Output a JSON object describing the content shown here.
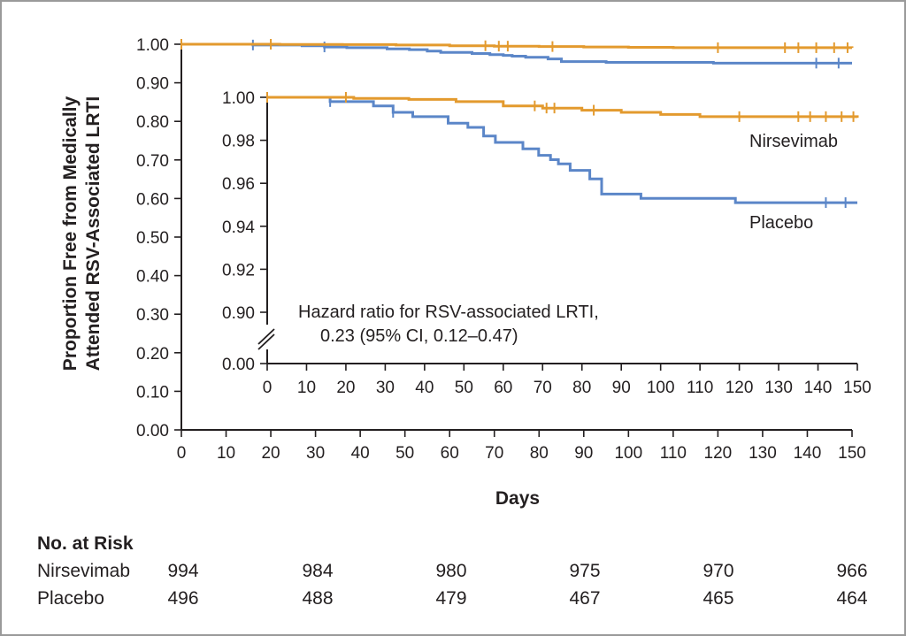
{
  "colors": {
    "nirsevimab": "#e39a2e",
    "placebo": "#5b86c8",
    "axis": "#231f20",
    "frame": "#9a9a9a"
  },
  "chart_data": {
    "type": "line",
    "subtype": "kaplan-meier",
    "title": "",
    "xlabel": "Days",
    "ylabel": "Proportion Free from Medically Attended RSV-Associated LRTI",
    "ylabel_lines": [
      "Proportion Free from Medically",
      "Attended RSV-Associated LRTI"
    ],
    "grid": false,
    "main_axes": {
      "xlim": [
        0,
        150
      ],
      "ylim": [
        0,
        1
      ],
      "xticks": [
        0,
        10,
        20,
        30,
        40,
        50,
        60,
        70,
        80,
        90,
        100,
        110,
        120,
        130,
        140,
        150
      ],
      "yticks": [
        0.0,
        0.1,
        0.2,
        0.3,
        0.4,
        0.5,
        0.6,
        0.7,
        0.8,
        0.9,
        1.0
      ],
      "ytick_labels": [
        "0.00",
        "0.10",
        "0.20",
        "0.30",
        "0.40",
        "0.50",
        "0.60",
        "0.70",
        "0.80",
        "0.90",
        "1.00"
      ]
    },
    "inset_axes": {
      "xlim": [
        0,
        150
      ],
      "ylim": [
        0.9,
        1.0
      ],
      "axis_break": true,
      "xticks": [
        0,
        10,
        20,
        30,
        40,
        50,
        60,
        70,
        80,
        90,
        100,
        110,
        120,
        130,
        140,
        150
      ],
      "yticks": [
        1.0,
        0.98,
        0.96,
        0.94,
        0.92,
        0.9
      ],
      "ytick_labels": [
        "1.00",
        "0.98",
        "0.96",
        "0.94",
        "0.92",
        "0.90"
      ],
      "break_label": "0.00"
    },
    "series": [
      {
        "name": "Nirsevimab",
        "x": [
          0,
          22,
          36,
          48,
          60,
          70,
          80,
          90,
          100,
          110,
          150
        ],
        "y": [
          1.0,
          0.9995,
          0.999,
          0.998,
          0.996,
          0.995,
          0.994,
          0.993,
          0.992,
          0.991,
          0.9905
        ],
        "censor_x": [
          0,
          20,
          68,
          71,
          73,
          83,
          120,
          135,
          138,
          142,
          146,
          149
        ]
      },
      {
        "name": "Placebo",
        "x": [
          0,
          16,
          27,
          32,
          37,
          46,
          51,
          55,
          58,
          65,
          69,
          72,
          74,
          77,
          82,
          85,
          95,
          119,
          150
        ],
        "y": [
          1.0,
          0.998,
          0.996,
          0.993,
          0.991,
          0.988,
          0.986,
          0.982,
          0.979,
          0.976,
          0.973,
          0.971,
          0.969,
          0.966,
          0.962,
          0.955,
          0.953,
          0.951,
          0.951
        ],
        "censor_x": [
          16,
          32,
          142,
          147
        ]
      }
    ],
    "annotations": {
      "hazard_line1": "Hazard ratio for RSV-associated LRTI,",
      "hazard_line2": "0.23 (95% CI, 0.12–0.47)",
      "label_nirsevimab": "Nirsevimab",
      "label_placebo": "Placebo"
    }
  },
  "risk_table": {
    "title": "No. at Risk",
    "rows": [
      {
        "label": "Nirsevimab",
        "values": [
          "994",
          "984",
          "980",
          "975",
          "970",
          "966"
        ]
      },
      {
        "label": "Placebo",
        "values": [
          "496",
          "488",
          "479",
          "467",
          "465",
          "464"
        ]
      }
    ]
  }
}
